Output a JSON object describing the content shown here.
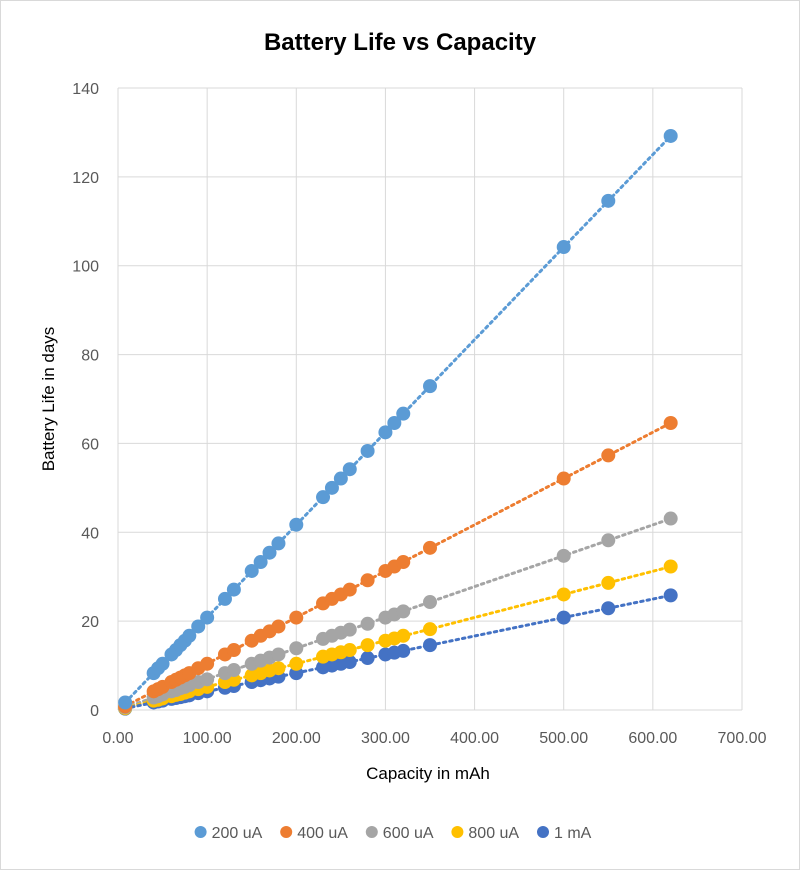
{
  "chart_data": {
    "type": "scatter",
    "title": "Battery Life vs Capacity",
    "xlabel": "Capacity in mAh",
    "ylabel": "Battery Life in days",
    "xlim": [
      0,
      700
    ],
    "ylim": [
      0,
      140
    ],
    "x_ticks": [
      0,
      100,
      200,
      300,
      400,
      500,
      600,
      700
    ],
    "x_tick_labels": [
      "0.00",
      "100.00",
      "200.00",
      "300.00",
      "400.00",
      "500.00",
      "600.00",
      "700.00"
    ],
    "y_ticks": [
      0,
      20,
      40,
      60,
      80,
      100,
      120,
      140
    ],
    "y_tick_labels": [
      "0",
      "20",
      "40",
      "60",
      "80",
      "100",
      "120",
      "140"
    ],
    "grid": true,
    "trendlines": "linear, dotted",
    "legend_position": "bottom",
    "x": [
      8,
      40,
      45,
      50,
      60,
      65,
      70,
      75,
      80,
      90,
      100,
      120,
      130,
      150,
      160,
      170,
      180,
      200,
      230,
      240,
      250,
      260,
      280,
      300,
      310,
      320,
      350,
      500,
      550,
      620
    ],
    "series": [
      {
        "name": "200 uA",
        "color": "#5b9bd5",
        "values": [
          1.7,
          8.3,
          9.4,
          10.4,
          12.5,
          13.5,
          14.6,
          15.6,
          16.7,
          18.8,
          20.8,
          25.0,
          27.1,
          31.3,
          33.3,
          35.4,
          37.5,
          41.7,
          47.9,
          50.0,
          52.1,
          54.2,
          58.3,
          62.5,
          64.6,
          66.7,
          72.9,
          104.2,
          114.6,
          129.2
        ]
      },
      {
        "name": "400 uA",
        "color": "#ed7d31",
        "values": [
          0.8,
          4.2,
          4.7,
          5.2,
          6.3,
          6.8,
          7.3,
          7.8,
          8.3,
          9.4,
          10.4,
          12.5,
          13.5,
          15.6,
          16.7,
          17.7,
          18.8,
          20.8,
          24.0,
          25.0,
          26.0,
          27.1,
          29.2,
          31.3,
          32.3,
          33.3,
          36.5,
          52.1,
          57.3,
          64.6
        ]
      },
      {
        "name": "600 uA",
        "color": "#a5a5a5",
        "values": [
          0.6,
          2.8,
          3.1,
          3.5,
          4.2,
          4.5,
          4.9,
          5.2,
          5.6,
          6.3,
          6.9,
          8.3,
          9.0,
          10.4,
          11.1,
          11.8,
          12.5,
          13.9,
          16.0,
          16.7,
          17.4,
          18.1,
          19.4,
          20.8,
          21.5,
          22.2,
          24.3,
          34.7,
          38.2,
          43.1
        ]
      },
      {
        "name": "800 uA",
        "color": "#ffc000",
        "values": [
          0.4,
          2.1,
          2.3,
          2.6,
          3.1,
          3.4,
          3.6,
          3.9,
          4.2,
          4.7,
          5.2,
          6.3,
          6.8,
          7.8,
          8.3,
          8.9,
          9.4,
          10.4,
          12.0,
          12.5,
          13.0,
          13.5,
          14.6,
          15.6,
          16.1,
          16.7,
          18.2,
          26.0,
          28.6,
          32.3
        ]
      },
      {
        "name": "1 mA",
        "color": "#4472c4",
        "values": [
          0.3,
          1.7,
          1.9,
          2.1,
          2.5,
          2.7,
          2.9,
          3.1,
          3.3,
          3.8,
          4.2,
          5.0,
          5.4,
          6.3,
          6.7,
          7.1,
          7.5,
          8.3,
          9.6,
          10.0,
          10.4,
          10.8,
          11.7,
          12.5,
          12.9,
          13.3,
          14.6,
          20.8,
          22.9,
          25.8
        ]
      }
    ]
  }
}
